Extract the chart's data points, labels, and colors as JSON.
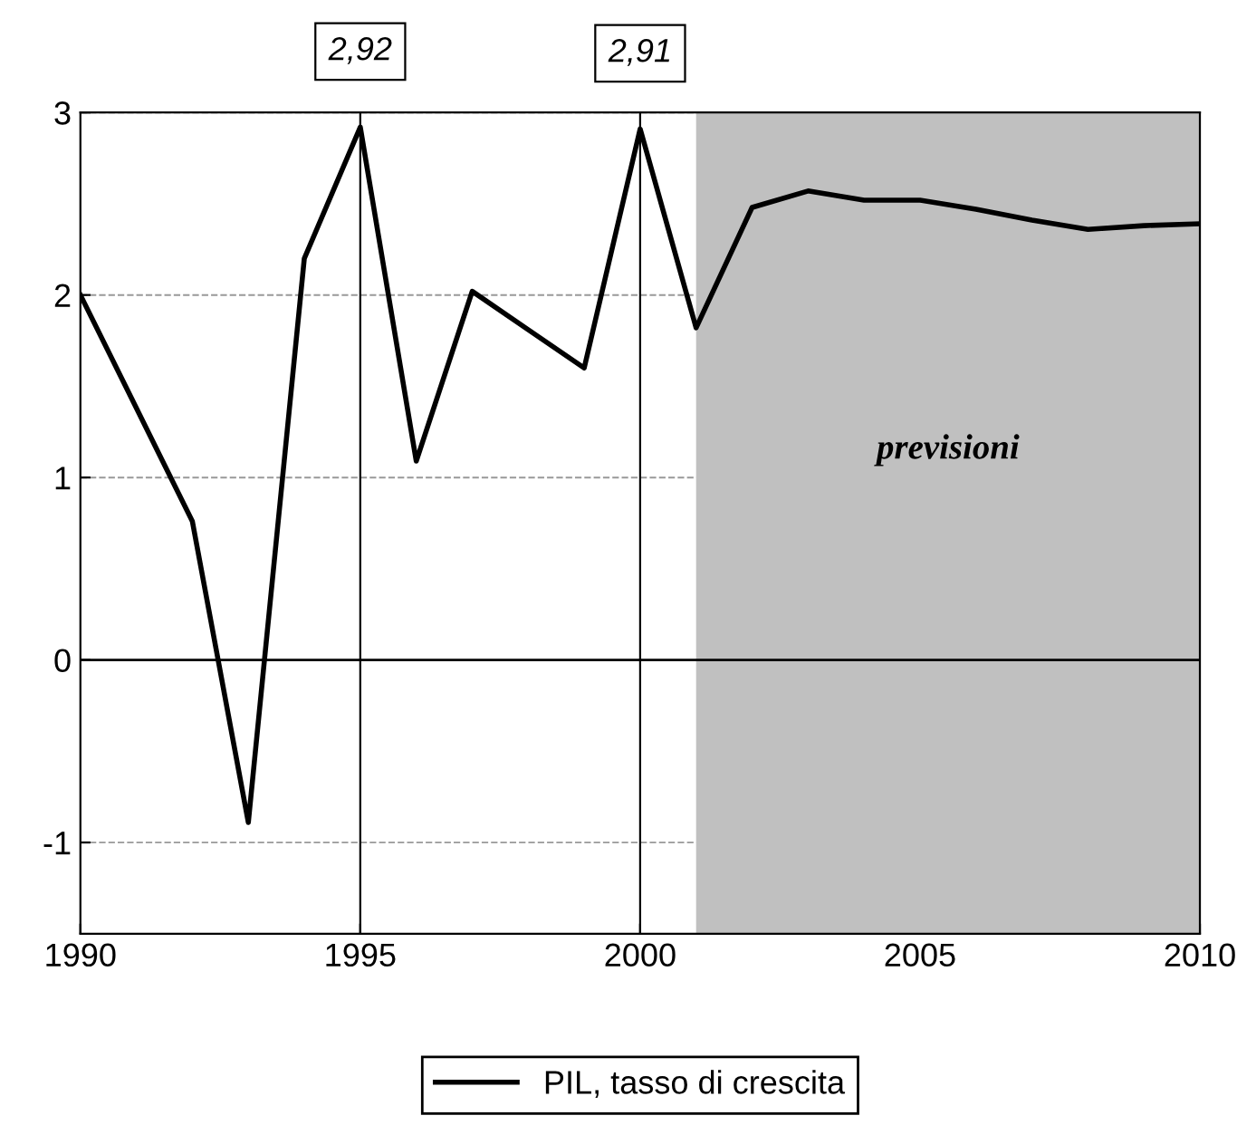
{
  "chart_data": {
    "type": "line",
    "x": [
      1990,
      1991,
      1992,
      1993,
      1994,
      1995,
      1996,
      1997,
      1998,
      1999,
      2000,
      2001,
      2002,
      2003,
      2004,
      2005,
      2006,
      2007,
      2008,
      2009,
      2010
    ],
    "series": [
      {
        "name": "PIL, tasso di crescita",
        "color": "#000000",
        "values": [
          2.0,
          1.38,
          0.76,
          -0.89,
          2.2,
          2.92,
          1.09,
          2.02,
          1.81,
          1.6,
          2.91,
          1.82,
          2.48,
          2.57,
          2.52,
          2.52,
          2.47,
          2.41,
          2.36,
          2.38,
          2.39
        ]
      }
    ],
    "xlim": [
      1990,
      2010
    ],
    "xticks": [
      1990,
      1995,
      2000,
      2005,
      2010
    ],
    "ylim": [
      -1.5,
      3
    ],
    "yticks": [
      -1,
      0,
      1,
      2,
      3
    ],
    "grid": "y",
    "legend": "bottom",
    "marker": "none",
    "line_style": "solid",
    "annotations": [
      {
        "text": "2,92",
        "x": 1995,
        "y": 2.92
      },
      {
        "text": "2,91",
        "x": 2000,
        "y": 2.91
      }
    ],
    "ref_lines": [
      {
        "axis": "x",
        "value": 1995,
        "color": "#000000",
        "line_style": "solid"
      },
      {
        "axis": "x",
        "value": 2000,
        "color": "#000000",
        "line_style": "solid"
      },
      {
        "axis": "y",
        "value": 0,
        "label": null,
        "color": "#000000",
        "line_style": "solid"
      }
    ],
    "bands": [
      {
        "axis": "x",
        "from": 2001,
        "to": 2010,
        "label": "previsioni",
        "color": "#c0c0c0"
      }
    ]
  }
}
